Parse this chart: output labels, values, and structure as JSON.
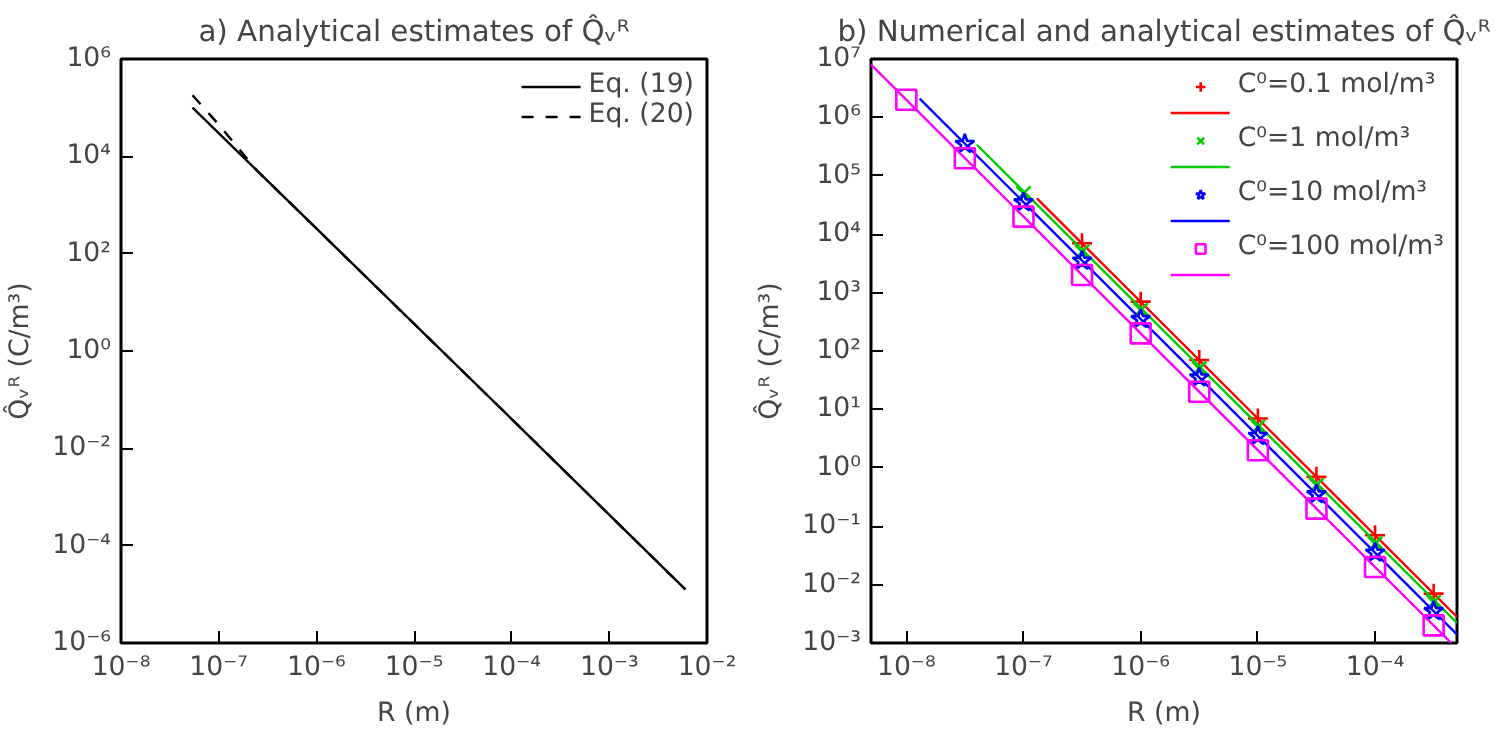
{
  "chart_data": [
    {
      "type": "line",
      "title": "a) Analytical estimates of Q̂ᵥᴿ",
      "xlabel": "R (m)",
      "ylabel": "Q̂ᵥᴿ (C/m³)",
      "log": "xy",
      "grid": false,
      "legend": "top right",
      "xlim": [
        1e-08,
        0.01
      ],
      "ylim": [
        1e-06,
        1000000.0
      ],
      "xticks": [
        {
          "value": 1e-08,
          "label": "10⁻⁸"
        },
        {
          "value": 1e-07,
          "label": "10⁻⁷"
        },
        {
          "value": 1e-06,
          "label": "10⁻⁶"
        },
        {
          "value": 1e-05,
          "label": "10⁻⁵"
        },
        {
          "value": 0.0001,
          "label": "10⁻⁴"
        },
        {
          "value": 0.001,
          "label": "10⁻³"
        },
        {
          "value": 0.01,
          "label": "10⁻²"
        }
      ],
      "yticks": [
        {
          "value": 1e-06,
          "label": "10⁻⁶"
        },
        {
          "value": 0.0001,
          "label": "10⁻⁴"
        },
        {
          "value": 0.01,
          "label": "10⁻²"
        },
        {
          "value": 1,
          "label": "10⁰"
        },
        {
          "value": 100.0,
          "label": "10²"
        },
        {
          "value": 10000.0,
          "label": "10⁴"
        },
        {
          "value": 1000000.0,
          "label": "10⁶"
        }
      ],
      "series": [
        {
          "type": "line",
          "name": "Eq. (19)",
          "color": "#000000",
          "line_style": "solid",
          "x": [
            5.4e-08,
            1e-07,
            2.5e-07,
            1e-06,
            0.0001,
            0.006
          ],
          "values": [
            100000.0,
            30000.0,
            4950.0,
            330,
            0.04,
            1.26e-05
          ]
        },
        {
          "type": "line",
          "name": "Eq. (20)",
          "color": "#000000",
          "line_style": "dashed",
          "x": [
            5.4e-08,
            1e-07,
            2.5e-07,
            1e-06,
            0.0001,
            0.006
          ],
          "values": [
            180000.0,
            45000.0,
            4950.0,
            330,
            0.04,
            1.26e-05
          ]
        }
      ]
    },
    {
      "type": "scatter",
      "title": "b) Numerical and analytical estimates of Q̂ᵥᴿ",
      "xlabel": "R (m)",
      "ylabel": "Q̂ᵥᴿ (C/m³)",
      "log": "xy",
      "grid": false,
      "legend": "top right",
      "xlim": [
        5e-09,
        0.0005
      ],
      "ylim": [
        0.001,
        10000000.0
      ],
      "xticks": [
        {
          "value": 1e-08,
          "label": "10⁻⁸"
        },
        {
          "value": 1e-07,
          "label": "10⁻⁷"
        },
        {
          "value": 1e-06,
          "label": "10⁻⁶"
        },
        {
          "value": 1e-05,
          "label": "10⁻⁵"
        },
        {
          "value": 0.0001,
          "label": "10⁻⁴"
        }
      ],
      "yticks": [
        {
          "value": 0.001,
          "label": "10⁻³"
        },
        {
          "value": 0.01,
          "label": "10⁻²"
        },
        {
          "value": 0.1,
          "label": "10⁻¹"
        },
        {
          "value": 1,
          "label": "10⁰"
        },
        {
          "value": 10,
          "label": "10¹"
        },
        {
          "value": 100,
          "label": "10²"
        },
        {
          "value": 1000.0,
          "label": "10³"
        },
        {
          "value": 10000.0,
          "label": "10⁴"
        },
        {
          "value": 100000.0,
          "label": "10⁵"
        },
        {
          "value": 1000000.0,
          "label": "10⁶"
        },
        {
          "value": 10000000.0,
          "label": "10⁷"
        }
      ],
      "series": [
        {
          "type": "scatter",
          "name": "C⁰=0.1 mol/m³",
          "color": "#ff0000",
          "marker": "cross",
          "x": [
            3.16e-07,
            1e-06,
            3.16e-06,
            1e-05,
            3.16e-05,
            0.0001,
            0.000316
          ],
          "values": [
            7000.0,
            700,
            70,
            7,
            0.7,
            0.07,
            0.007
          ]
        },
        {
          "type": "line",
          "color": "#ff0000",
          "line_style": "solid",
          "x": [
            1.3e-07,
            0.0005
          ],
          "values": [
            41000.0,
            0.0028
          ]
        },
        {
          "type": "scatter",
          "name": "C⁰=1 mol/m³",
          "color": "#00cc00",
          "marker": "x",
          "x": [
            1e-07,
            3.16e-07,
            1e-06,
            3.16e-06,
            1e-05,
            3.16e-05,
            0.0001,
            0.000316
          ],
          "values": [
            50000.0,
            5000.0,
            500,
            50,
            5,
            0.5,
            0.05,
            0.005
          ]
        },
        {
          "type": "line",
          "color": "#00cc00",
          "line_style": "solid",
          "x": [
            4e-08,
            0.0005
          ],
          "values": [
            340000.0,
            0.0022
          ]
        },
        {
          "type": "scatter",
          "name": "C⁰=10 mol/m³",
          "color": "#0000ff",
          "marker": "star",
          "x": [
            3.16e-08,
            1e-07,
            3.16e-07,
            1e-06,
            3.16e-06,
            1e-05,
            3.16e-05,
            0.0001,
            0.000316
          ],
          "values": [
            350000.0,
            35000.0,
            3500.0,
            350,
            35,
            3.5,
            0.35,
            0.035,
            0.0035
          ]
        },
        {
          "type": "line",
          "color": "#0000ff",
          "line_style": "solid",
          "x": [
            1.3e-08,
            0.0005
          ],
          "values": [
            2100000.0,
            0.0014
          ]
        },
        {
          "type": "scatter",
          "name": "C⁰=100 mol/m³",
          "color": "#ff00ff",
          "marker": "square",
          "x": [
            1e-08,
            3.16e-08,
            1e-07,
            3.16e-07,
            1e-06,
            3.16e-06,
            1e-05,
            3.16e-05,
            0.0001,
            0.000316
          ],
          "values": [
            2000000.0,
            200000.0,
            20000.0,
            2000.0,
            200,
            20,
            2,
            0.2,
            0.02,
            0.002
          ]
        },
        {
          "type": "line",
          "color": "#ff00ff",
          "line_style": "solid",
          "x": [
            5e-09,
            0.000447
          ],
          "values": [
            8000000.0,
            0.001
          ]
        }
      ]
    }
  ]
}
